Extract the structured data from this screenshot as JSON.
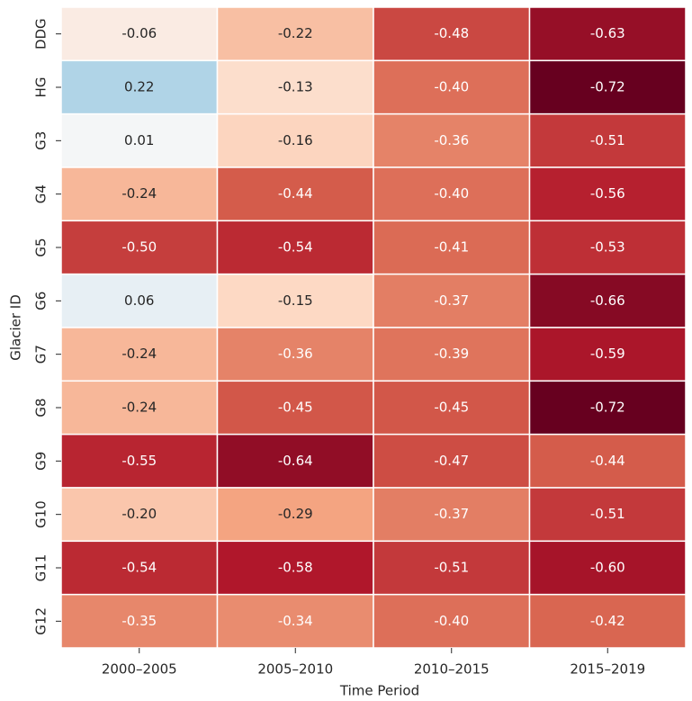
{
  "chart_data": {
    "type": "heatmap",
    "cmap": "RdBu",
    "x_label": "Time Period",
    "y_label": "Glacier ID",
    "x_categories": [
      "2000–2005",
      "2005–2010",
      "2010–2015",
      "2015–2019"
    ],
    "y_categories": [
      "DDG",
      "HG",
      "G3",
      "G4",
      "G5",
      "G6",
      "G7",
      "G8",
      "G9",
      "G10",
      "G11",
      "G12"
    ],
    "values": [
      [
        -0.06,
        -0.22,
        -0.48,
        -0.63
      ],
      [
        0.22,
        -0.13,
        -0.4,
        -0.72
      ],
      [
        0.01,
        -0.16,
        -0.36,
        -0.51
      ],
      [
        -0.24,
        -0.44,
        -0.4,
        -0.56
      ],
      [
        -0.5,
        -0.54,
        -0.41,
        -0.53
      ],
      [
        0.06,
        -0.15,
        -0.37,
        -0.66
      ],
      [
        -0.24,
        -0.36,
        -0.39,
        -0.59
      ],
      [
        -0.24,
        -0.45,
        -0.45,
        -0.72
      ],
      [
        -0.55,
        -0.64,
        -0.47,
        -0.44
      ],
      [
        -0.2,
        -0.29,
        -0.37,
        -0.51
      ],
      [
        -0.54,
        -0.58,
        -0.51,
        -0.6
      ],
      [
        -0.35,
        -0.34,
        -0.4,
        -0.42
      ]
    ],
    "value_labels": [
      [
        "-0.06",
        "-0.22",
        "-0.48",
        "-0.63"
      ],
      [
        "0.22",
        "-0.13",
        "-0.40",
        "-0.72"
      ],
      [
        "0.01",
        "-0.16",
        "-0.36",
        "-0.51"
      ],
      [
        "-0.24",
        "-0.44",
        "-0.40",
        "-0.56"
      ],
      [
        "-0.50",
        "-0.54",
        "-0.41",
        "-0.53"
      ],
      [
        "0.06",
        "-0.15",
        "-0.37",
        "-0.66"
      ],
      [
        "-0.24",
        "-0.36",
        "-0.39",
        "-0.59"
      ],
      [
        "-0.24",
        "-0.45",
        "-0.45",
        "-0.72"
      ],
      [
        "-0.55",
        "-0.64",
        "-0.47",
        "-0.44"
      ],
      [
        "-0.20",
        "-0.29",
        "-0.37",
        "-0.51"
      ],
      [
        "-0.54",
        "-0.58",
        "-0.51",
        "-0.60"
      ],
      [
        "-0.35",
        "-0.34",
        "-0.40",
        "-0.42"
      ]
    ]
  }
}
